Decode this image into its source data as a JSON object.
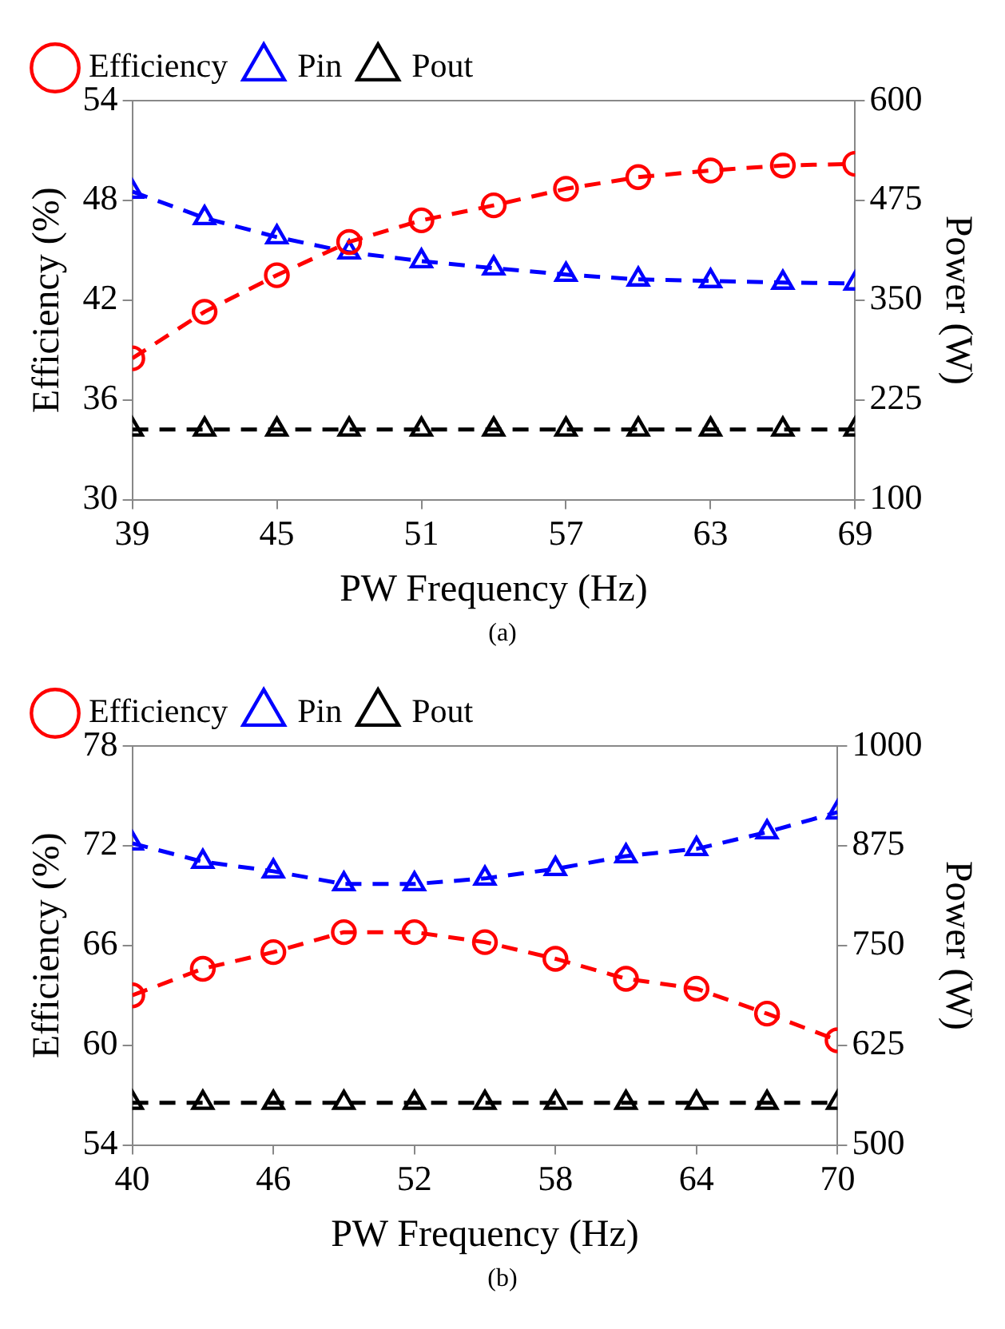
{
  "chart_data": [
    {
      "type": "line",
      "xlabel": "PW Frequency (Hz)",
      "ylabel": "Efficiency (%)",
      "y2label": "Power (W)",
      "x": [
        39,
        42,
        45,
        48,
        51,
        54,
        57,
        60,
        63,
        66,
        69
      ],
      "xlim": [
        39,
        69
      ],
      "xticks": [
        39,
        45,
        51,
        57,
        63,
        69
      ],
      "ylim": [
        30,
        54
      ],
      "yticks": [
        30,
        36,
        42,
        48,
        54
      ],
      "y2lim": [
        100,
        600
      ],
      "y2ticks": [
        100,
        225,
        350,
        475,
        600
      ],
      "grid": false,
      "legend": "top left",
      "line_style": "dashed",
      "annotations": [
        "(a)"
      ],
      "series": [
        {
          "name": "Efficiency",
          "color": "#ff0000",
          "marker": "circle",
          "values": [
            38.5,
            41.3,
            43.5,
            45.5,
            46.8,
            47.7,
            48.7,
            49.4,
            49.8,
            50.1,
            50.2
          ]
        },
        {
          "name": "Pin",
          "color": "#0000ff",
          "marker": "triangle",
          "axis": "y2",
          "values": [
            486,
            453,
            429,
            410,
            399,
            390,
            382,
            376,
            374,
            372,
            371
          ]
        },
        {
          "name": "Pout",
          "color": "#000000",
          "marker": "triangle",
          "axis": "y2",
          "values": [
            188,
            188,
            188,
            188,
            188,
            188,
            188,
            188,
            188,
            188,
            188
          ]
        }
      ]
    },
    {
      "type": "line",
      "xlabel": "PW Frequency (Hz)",
      "ylabel": "Efficiency (%)",
      "y2label": "Power (W)",
      "x": [
        40,
        43,
        46,
        49,
        52,
        55,
        58,
        61,
        64,
        67,
        70
      ],
      "xlim": [
        40,
        70
      ],
      "xticks": [
        40,
        46,
        52,
        58,
        64,
        70
      ],
      "ylim": [
        54,
        78
      ],
      "yticks": [
        54,
        60,
        66,
        72,
        78
      ],
      "y2lim": [
        500,
        1000
      ],
      "y2ticks": [
        500,
        625,
        750,
        875,
        1000
      ],
      "grid": false,
      "legend": "top left",
      "line_style": "dashed",
      "annotations": [
        "(b)"
      ],
      "series": [
        {
          "name": "Efficiency",
          "color": "#ff0000",
          "marker": "circle",
          "values": [
            63.0,
            64.6,
            65.6,
            66.8,
            66.8,
            66.2,
            65.2,
            64.0,
            63.4,
            61.9,
            60.3
          ]
        },
        {
          "name": "Pin",
          "color": "#0000ff",
          "marker": "triangle",
          "axis": "y2",
          "values": [
            878,
            855,
            843,
            827,
            827,
            834,
            846,
            862,
            871,
            892,
            917
          ]
        },
        {
          "name": "Pout",
          "color": "#000000",
          "marker": "triangle",
          "axis": "y2",
          "values": [
            553,
            553,
            553,
            553,
            553,
            553,
            553,
            553,
            553,
            553,
            553
          ]
        }
      ]
    }
  ]
}
